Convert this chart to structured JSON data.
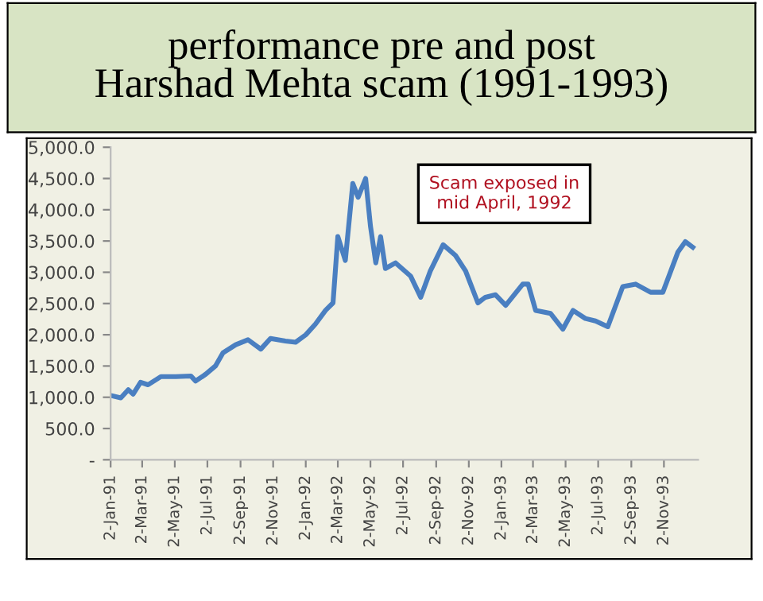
{
  "chart_data": {
    "type": "line",
    "title": "performance pre and post\nHarshad Mehta scam (1991-1993)",
    "annotations": [
      "Scam exposed in\nmid April, 1992"
    ],
    "x": [
      "1991-01-02",
      "1991-01-21",
      "1991-02-04",
      "1991-02-13",
      "1991-02-27",
      "1991-03-13",
      "1991-04-06",
      "1991-05-04",
      "1991-06-01",
      "1991-06-10",
      "1991-06-29",
      "1991-07-17",
      "1991-07-31",
      "1991-08-24",
      "1991-09-16",
      "1991-10-10",
      "1991-10-28",
      "1991-11-25",
      "1991-12-14",
      "1992-01-02",
      "1992-01-20",
      "1992-02-08",
      "1992-02-22",
      "1992-03-02",
      "1992-03-16",
      "1992-03-30",
      "1992-04-09",
      "1992-04-23",
      "1992-05-02",
      "1992-05-12",
      "1992-05-21",
      "1992-05-30",
      "1992-06-18",
      "1992-07-16",
      "1992-08-04",
      "1992-08-22",
      "1992-09-15",
      "1992-10-08",
      "1992-10-27",
      "1992-11-19",
      "1992-12-03",
      "1992-12-22",
      "1993-01-10",
      "1993-02-11",
      "1993-02-21",
      "1993-03-07",
      "1993-04-04",
      "1993-04-27",
      "1993-05-16",
      "1993-06-08",
      "1993-06-27",
      "1993-07-20",
      "1993-08-17",
      "1993-09-10",
      "1993-10-08",
      "1993-10-31",
      "1993-11-28",
      "1993-12-12",
      "1993-12-26"
    ],
    "series": [
      {
        "color": "#4a7fc1",
        "values": [
          1030,
          990,
          1120,
          1050,
          1240,
          1200,
          1330,
          1330,
          1340,
          1260,
          1370,
          1500,
          1710,
          1840,
          1920,
          1770,
          1940,
          1900,
          1880,
          2000,
          2170,
          2390,
          2510,
          3570,
          3190,
          4420,
          4200,
          4500,
          3740,
          3150,
          3570,
          3060,
          3150,
          2940,
          2600,
          3020,
          3440,
          3270,
          3020,
          2510,
          2600,
          2640,
          2470,
          2810,
          2810,
          2390,
          2340,
          2090,
          2390,
          2260,
          2220,
          2130,
          2770,
          2810,
          2680,
          2680,
          3320,
          3490,
          3400
        ]
      }
    ],
    "xlim": [
      "1991-01-02",
      "1994-01-05"
    ],
    "xticks": [
      {
        "value": "1991-01-02",
        "label": "2-Jan-91"
      },
      {
        "value": "1991-03-02",
        "label": "2-Mar-91"
      },
      {
        "value": "1991-05-02",
        "label": "2-May-91"
      },
      {
        "value": "1991-07-02",
        "label": "2-Jul-91"
      },
      {
        "value": "1991-09-02",
        "label": "2-Sep-91"
      },
      {
        "value": "1991-11-02",
        "label": "2-Nov-91"
      },
      {
        "value": "1992-01-02",
        "label": "2-Jan-92"
      },
      {
        "value": "1992-03-02",
        "label": "2-Mar-92"
      },
      {
        "value": "1992-05-02",
        "label": "2-May-92"
      },
      {
        "value": "1992-07-02",
        "label": "2-Jul-92"
      },
      {
        "value": "1992-09-02",
        "label": "2-Sep-92"
      },
      {
        "value": "1992-11-02",
        "label": "2-Nov-92"
      },
      {
        "value": "1993-01-02",
        "label": "2-Jan-93"
      },
      {
        "value": "1993-03-02",
        "label": "2-Mar-93"
      },
      {
        "value": "1993-05-02",
        "label": "2-May-93"
      },
      {
        "value": "1993-07-02",
        "label": "2-Jul-93"
      },
      {
        "value": "1993-09-02",
        "label": "2-Sep-93"
      },
      {
        "value": "1993-11-02",
        "label": "2-Nov-93"
      }
    ],
    "ylim": [
      0,
      5000
    ],
    "yticks": [
      {
        "value": 0,
        "label": "-"
      },
      {
        "value": 500,
        "label": "500.0"
      },
      {
        "value": 1000,
        "label": "1,000.0"
      },
      {
        "value": 1500,
        "label": "1,500.0"
      },
      {
        "value": 2000,
        "label": "2,000.0"
      },
      {
        "value": 2500,
        "label": "2,500.0"
      },
      {
        "value": 3000,
        "label": "3,000.0"
      },
      {
        "value": 3500,
        "label": "3,500.0"
      },
      {
        "value": 4000,
        "label": "4,000.0"
      },
      {
        "value": 4500,
        "label": "4,500.0"
      },
      {
        "value": 5000,
        "label": "5,000.0"
      }
    ],
    "grid": false,
    "legend": false,
    "marker": "none",
    "line_style": "solid"
  }
}
